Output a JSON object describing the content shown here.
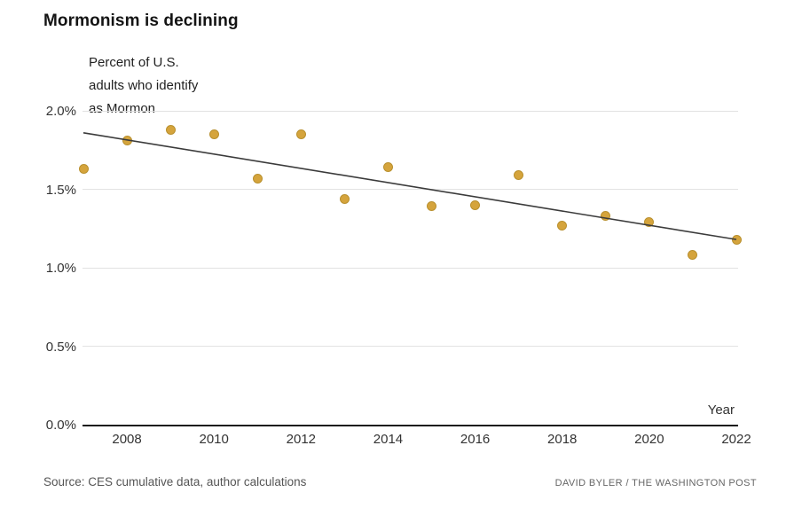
{
  "title": "Mormonism is declining",
  "subtitle": "Percent of U.S.\nadults who identify\nas Mormon",
  "axis": {
    "y_tick_labels": [
      "2.0%",
      "1.5%",
      "1.0%",
      "0.5%",
      "0.0%"
    ],
    "x_tick_labels": [
      "2008",
      "2010",
      "2012",
      "2014",
      "2016",
      "2018",
      "2020",
      "2022"
    ],
    "x_axis_label": "Year"
  },
  "footer": {
    "source": "Source: CES cumulative data, author calculations",
    "credit": "DAVID BYLER / THE WASHINGTON POST"
  },
  "colors": {
    "dot_fill": "#d5a43c",
    "dot_stroke": "#b9902e",
    "trend_line": "#3b3b3b",
    "gridline": "#e2e2e2",
    "axis_line": "#1a1a1a"
  },
  "chart_data": {
    "type": "scatter",
    "title": "Mormonism is declining",
    "subtitle": "Percent of U.S. adults who identify as Mormon",
    "xlabel": "Year",
    "ylabel": "Percent of U.S. adults who identify as Mormon",
    "xlim": [
      2007,
      2022
    ],
    "ylim": [
      0.0,
      2.0
    ],
    "y_ticks": [
      0.0,
      0.5,
      1.0,
      1.5,
      2.0
    ],
    "x_ticks": [
      2008,
      2010,
      2012,
      2014,
      2016,
      2018,
      2020,
      2022
    ],
    "grid": "horizontal-only",
    "legend": "none",
    "points": {
      "x": [
        2007,
        2008,
        2009,
        2010,
        2011,
        2012,
        2013,
        2014,
        2015,
        2016,
        2017,
        2018,
        2019,
        2020,
        2021,
        2022
      ],
      "y": [
        1.63,
        1.81,
        1.88,
        1.85,
        1.57,
        1.85,
        1.44,
        1.64,
        1.39,
        1.4,
        1.59,
        1.27,
        1.33,
        1.29,
        1.08,
        1.18
      ]
    },
    "trend_line": {
      "x1": 2007,
      "y1": 1.86,
      "x2": 2022,
      "y2": 1.18
    }
  }
}
